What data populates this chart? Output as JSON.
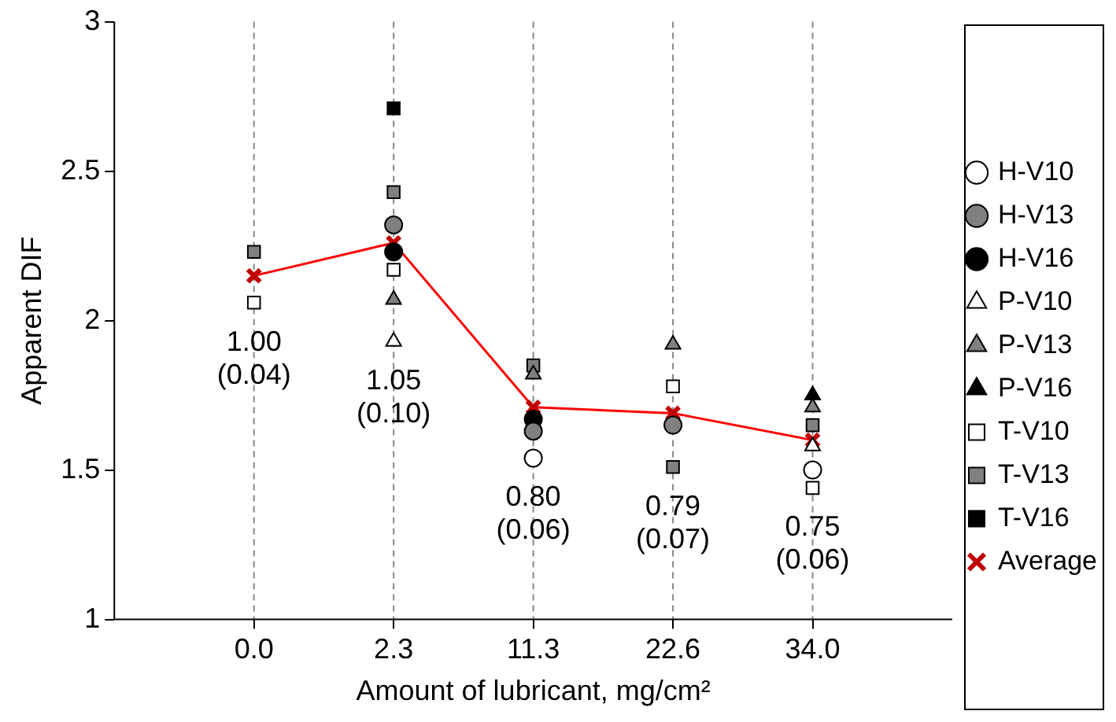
{
  "chart_data": {
    "type": "scatter",
    "xlabel": "Amount of lubricant, mg/cm²",
    "ylabel": "Apparent DIF",
    "categories": [
      "0.0",
      "2.3",
      "11.3",
      "22.6",
      "34.0"
    ],
    "ylim": [
      1,
      3
    ],
    "yticks": [
      1,
      1.5,
      2,
      2.5,
      3
    ],
    "grid": "x",
    "legend": "right",
    "series": [
      {
        "name": "H-V10",
        "color": "#ffffff",
        "marker": "circle",
        "values": [
          null,
          null,
          1.54,
          null,
          1.5
        ]
      },
      {
        "name": "H-V13",
        "color": "#808080",
        "marker": "circle",
        "values": [
          null,
          2.32,
          1.63,
          1.65,
          null
        ]
      },
      {
        "name": "H-V16",
        "color": "#000000",
        "marker": "circle",
        "values": [
          null,
          2.23,
          1.67,
          null,
          null
        ]
      },
      {
        "name": "P-V10",
        "color": "#ffffff",
        "marker": "triangle",
        "values": [
          null,
          1.93,
          null,
          null,
          1.58
        ]
      },
      {
        "name": "P-V13",
        "color": "#808080",
        "marker": "triangle",
        "values": [
          null,
          2.07,
          1.82,
          1.92,
          1.71
        ]
      },
      {
        "name": "P-V16",
        "color": "#000000",
        "marker": "triangle",
        "values": [
          null,
          null,
          null,
          null,
          1.75
        ]
      },
      {
        "name": "T-V10",
        "color": "#ffffff",
        "marker": "square",
        "values": [
          2.06,
          2.17,
          null,
          1.78,
          1.44
        ]
      },
      {
        "name": "T-V13",
        "color": "#808080",
        "marker": "square",
        "values": [
          2.23,
          2.43,
          1.85,
          1.51,
          1.65
        ]
      },
      {
        "name": "T-V16",
        "color": "#000000",
        "marker": "square",
        "values": [
          null,
          2.71,
          null,
          null,
          null
        ]
      },
      {
        "name": "Average",
        "type": "line",
        "color": "#ff0000",
        "marker": "cross",
        "values": [
          2.15,
          2.26,
          1.71,
          1.69,
          1.6
        ]
      }
    ],
    "annotations": [
      "1.00\n(0.04)",
      "1.05\n(0.10)",
      "0.80\n(0.06)",
      "0.79\n(0.07)",
      "0.75\n(0.06)"
    ]
  }
}
